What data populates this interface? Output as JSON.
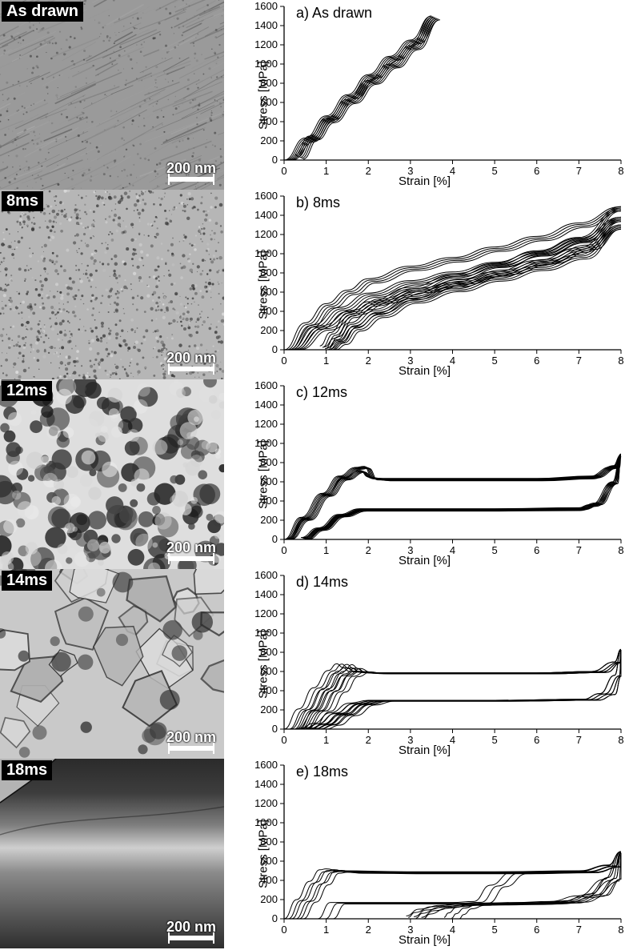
{
  "page_background": "#ffffff",
  "global": {
    "chart_ylabel": "Stress [MPa]",
    "chart_xlabel": "Strain [%]",
    "chart_ylabel_fontsize": 15,
    "chart_xlabel_fontsize": 15,
    "tick_font_size": 13,
    "subtitle_fontsize": 18,
    "xlim": [
      0,
      8
    ],
    "ylim": [
      0,
      1600
    ],
    "xtick_step": 1,
    "ytick_step": 200,
    "axis_color": "#000000",
    "curve_color": "#000000",
    "curve_stroke_width": 1.0,
    "background_color": "#ffffff"
  },
  "rows": [
    {
      "id": "as_drawn",
      "micrograph_label": "As drawn",
      "scalebar_text": "200 nm",
      "chart_subtitle": "a) As drawn",
      "curves": [
        {
          "load": [
            [
              0,
              0
            ],
            [
              0.5,
              230
            ],
            [
              1.0,
              460
            ],
            [
              1.5,
              680
            ],
            [
              2.0,
              890
            ],
            [
              2.5,
              1080
            ],
            [
              3.0,
              1250
            ],
            [
              3.5,
              1500
            ]
          ],
          "unload": [
            [
              3.5,
              1500
            ],
            [
              3.0,
              1190
            ],
            [
              2.5,
              1000
            ],
            [
              2.0,
              830
            ],
            [
              1.5,
              630
            ],
            [
              1.0,
              430
            ],
            [
              0.6,
              250
            ],
            [
              0.25,
              50
            ]
          ]
        }
      ],
      "curve_repeats": 6,
      "repeat_shift_strain": 0.04,
      "repeat_shift_stress": -8
    },
    {
      "id": "8ms",
      "micrograph_label": "8ms",
      "scalebar_text": "200 nm",
      "chart_subtitle": "b) 8ms",
      "curves": [
        {
          "load": [
            [
              0,
              0
            ],
            [
              0.5,
              280
            ],
            [
              1.0,
              480
            ],
            [
              1.5,
              620
            ],
            [
              2.0,
              740
            ],
            [
              3.0,
              870
            ],
            [
              4.0,
              960
            ],
            [
              5.0,
              1070
            ],
            [
              6.0,
              1180
            ],
            [
              7.0,
              1320
            ],
            [
              8.0,
              1490
            ]
          ],
          "unload": [
            [
              8.0,
              1490
            ],
            [
              7.0,
              1170
            ],
            [
              6.0,
              1030
            ],
            [
              5.0,
              900
            ],
            [
              4.0,
              780
            ],
            [
              3.0,
              650
            ],
            [
              2.0,
              500
            ],
            [
              1.5,
              380
            ],
            [
              1.1,
              180
            ],
            [
              0.85,
              40
            ]
          ]
        },
        {
          "load": [
            [
              0.1,
              0
            ],
            [
              0.7,
              260
            ],
            [
              1.3,
              440
            ],
            [
              2.0,
              590
            ],
            [
              3.0,
              720
            ],
            [
              4.0,
              810
            ],
            [
              5.0,
              910
            ],
            [
              6.0,
              1020
            ],
            [
              7.0,
              1160
            ],
            [
              8.0,
              1380
            ]
          ],
          "unload": [
            [
              8.0,
              1380
            ],
            [
              7.0,
              1060
            ],
            [
              6.0,
              930
            ],
            [
              5.0,
              810
            ],
            [
              4.0,
              700
            ],
            [
              3.0,
              570
            ],
            [
              2.1,
              420
            ],
            [
              1.55,
              280
            ],
            [
              1.2,
              120
            ],
            [
              0.95,
              30
            ]
          ]
        },
        {
          "load": [
            [
              0.2,
              0
            ],
            [
              0.9,
              250
            ],
            [
              1.6,
              410
            ],
            [
              2.3,
              530
            ],
            [
              3.2,
              640
            ],
            [
              4.2,
              730
            ],
            [
              5.2,
              830
            ],
            [
              6.2,
              940
            ],
            [
              7.2,
              1090
            ],
            [
              8.0,
              1300
            ]
          ],
          "unload": [
            [
              8.0,
              1300
            ],
            [
              7.0,
              990
            ],
            [
              6.0,
              870
            ],
            [
              5.0,
              760
            ],
            [
              4.0,
              650
            ],
            [
              3.0,
              530
            ],
            [
              2.2,
              380
            ],
            [
              1.65,
              240
            ],
            [
              1.3,
              100
            ],
            [
              1.05,
              25
            ]
          ]
        }
      ],
      "curve_repeats": 4,
      "repeat_shift_strain": 0.06,
      "repeat_shift_stress": -15
    },
    {
      "id": "12ms",
      "micrograph_label": "12ms",
      "scalebar_text": "200 nm",
      "chart_subtitle": "c) 12ms",
      "curves": [
        {
          "load": [
            [
              0,
              0
            ],
            [
              0.4,
              230
            ],
            [
              0.9,
              480
            ],
            [
              1.3,
              660
            ],
            [
              1.7,
              750
            ],
            [
              1.9,
              760
            ],
            [
              2.1,
              640
            ],
            [
              2.5,
              630
            ],
            [
              4.0,
              630
            ],
            [
              6.0,
              630
            ],
            [
              7.2,
              650
            ],
            [
              7.8,
              760
            ],
            [
              8.0,
              880
            ]
          ],
          "unload": [
            [
              8.0,
              880
            ],
            [
              7.8,
              600
            ],
            [
              7.4,
              380
            ],
            [
              7.0,
              330
            ],
            [
              5.0,
              320
            ],
            [
              3.0,
              320
            ],
            [
              1.8,
              320
            ],
            [
              1.3,
              260
            ],
            [
              0.8,
              120
            ],
            [
              0.4,
              20
            ]
          ]
        },
        {
          "load": [
            [
              0.05,
              0
            ],
            [
              0.5,
              220
            ],
            [
              1.0,
              470
            ],
            [
              1.4,
              640
            ],
            [
              1.8,
              720
            ],
            [
              2.0,
              650
            ],
            [
              2.3,
              635
            ],
            [
              4.0,
              635
            ],
            [
              6.0,
              635
            ],
            [
              7.3,
              660
            ],
            [
              7.85,
              770
            ],
            [
              8.0,
              890
            ]
          ],
          "unload": [
            [
              8.0,
              890
            ],
            [
              7.8,
              600
            ],
            [
              7.3,
              365
            ],
            [
              6.9,
              320
            ],
            [
              5.0,
              315
            ],
            [
              3.0,
              315
            ],
            [
              1.85,
              315
            ],
            [
              1.35,
              255
            ],
            [
              0.85,
              115
            ],
            [
              0.45,
              18
            ]
          ]
        }
      ],
      "curve_repeats": 5,
      "repeat_shift_strain": 0.03,
      "repeat_shift_stress": -5
    },
    {
      "id": "14ms",
      "micrograph_label": "14ms",
      "scalebar_text": "200 nm",
      "chart_subtitle": "d) 14ms",
      "curves": [
        {
          "load": [
            [
              0,
              0
            ],
            [
              0.35,
              210
            ],
            [
              0.7,
              430
            ],
            [
              1.05,
              610
            ],
            [
              1.25,
              680
            ],
            [
              1.4,
              640
            ],
            [
              1.55,
              600
            ],
            [
              2.0,
              585
            ],
            [
              4.0,
              585
            ],
            [
              6.0,
              585
            ],
            [
              7.3,
              600
            ],
            [
              7.85,
              700
            ],
            [
              8.0,
              830
            ]
          ],
          "unload": [
            [
              8.0,
              830
            ],
            [
              7.85,
              560
            ],
            [
              7.5,
              370
            ],
            [
              7.1,
              310
            ],
            [
              5.0,
              300
            ],
            [
              3.0,
              300
            ],
            [
              2.0,
              300
            ],
            [
              1.55,
              270
            ],
            [
              1.1,
              170
            ],
            [
              0.7,
              60
            ],
            [
              0.4,
              10
            ]
          ]
        },
        {
          "load": [
            [
              0.15,
              0
            ],
            [
              0.55,
              200
            ],
            [
              0.9,
              410
            ],
            [
              1.2,
              580
            ],
            [
              1.45,
              640
            ],
            [
              1.7,
              600
            ],
            [
              2.1,
              585
            ],
            [
              4.0,
              585
            ],
            [
              6.0,
              585
            ],
            [
              7.3,
              600
            ],
            [
              7.85,
              700
            ],
            [
              8.0,
              830
            ]
          ],
          "unload": [
            [
              8.0,
              830
            ],
            [
              7.85,
              560
            ],
            [
              7.5,
              370
            ],
            [
              7.1,
              310
            ],
            [
              5.0,
              300
            ],
            [
              3.0,
              300
            ],
            [
              2.1,
              300
            ],
            [
              1.65,
              265
            ],
            [
              1.2,
              160
            ],
            [
              0.8,
              55
            ],
            [
              0.5,
              10
            ]
          ]
        },
        {
          "load": [
            [
              0.3,
              0
            ],
            [
              0.75,
              195
            ],
            [
              1.1,
              395
            ],
            [
              1.4,
              555
            ],
            [
              1.7,
              605
            ],
            [
              1.95,
              590
            ],
            [
              2.3,
              585
            ],
            [
              4.0,
              585
            ],
            [
              6.0,
              585
            ],
            [
              7.3,
              600
            ],
            [
              7.85,
              700
            ],
            [
              8.0,
              830
            ]
          ],
          "unload": [
            [
              8.0,
              830
            ],
            [
              7.85,
              560
            ],
            [
              7.5,
              370
            ],
            [
              7.1,
              310
            ],
            [
              5.0,
              300
            ],
            [
              3.0,
              300
            ],
            [
              2.25,
              300
            ],
            [
              1.8,
              260
            ],
            [
              1.35,
              150
            ],
            [
              0.95,
              50
            ],
            [
              0.65,
              10
            ]
          ]
        }
      ],
      "curve_repeats": 4,
      "repeat_shift_strain": 0.12,
      "repeat_shift_stress": -3
    },
    {
      "id": "18ms",
      "micrograph_label": "18ms",
      "scalebar_text": "200 nm",
      "chart_subtitle": "e) 18ms",
      "curves": [
        {
          "load": [
            [
              0,
              0
            ],
            [
              0.3,
              200
            ],
            [
              0.6,
              390
            ],
            [
              0.85,
              510
            ],
            [
              1.0,
              520
            ],
            [
              1.3,
              500
            ],
            [
              3.0,
              490
            ],
            [
              5.0,
              490
            ],
            [
              7.0,
              500
            ],
            [
              7.7,
              560
            ],
            [
              8.0,
              700
            ]
          ],
          "unload": [
            [
              8.0,
              700
            ],
            [
              7.7,
              430
            ],
            [
              7.3,
              260
            ],
            [
              6.8,
              190
            ],
            [
              6.2,
              170
            ],
            [
              5.3,
              165
            ],
            [
              4.4,
              160
            ],
            [
              3.7,
              140
            ],
            [
              3.2,
              100
            ],
            [
              2.9,
              30
            ]
          ]
        },
        {
          "load": [
            [
              0.1,
              0
            ],
            [
              0.4,
              190
            ],
            [
              0.7,
              370
            ],
            [
              0.95,
              490
            ],
            [
              1.15,
              500
            ],
            [
              1.5,
              490
            ],
            [
              3.0,
              485
            ],
            [
              5.0,
              485
            ],
            [
              7.0,
              495
            ],
            [
              7.7,
              555
            ],
            [
              8.0,
              700
            ]
          ],
          "unload": [
            [
              8.0,
              700
            ],
            [
              7.7,
              430
            ],
            [
              7.2,
              250
            ],
            [
              6.6,
              180
            ],
            [
              5.8,
              165
            ],
            [
              4.9,
              160
            ],
            [
              4.1,
              155
            ],
            [
              3.5,
              125
            ],
            [
              3.1,
              65
            ],
            [
              2.95,
              15
            ]
          ]
        },
        {
          "load": [
            [
              0.8,
              0
            ],
            [
              1.1,
              170
            ],
            [
              1.9,
              170
            ],
            [
              3.0,
              170
            ],
            [
              4.0,
              170
            ],
            [
              4.5,
              180
            ],
            [
              4.9,
              350
            ],
            [
              5.4,
              485
            ],
            [
              7.0,
              495
            ],
            [
              7.7,
              555
            ],
            [
              8.0,
              700
            ]
          ],
          "unload": [
            [
              8.0,
              700
            ],
            [
              7.6,
              410
            ],
            [
              7.0,
              240
            ],
            [
              6.3,
              180
            ],
            [
              5.5,
              170
            ],
            [
              4.9,
              165
            ],
            [
              4.4,
              155
            ],
            [
              4.1,
              120
            ],
            [
              3.9,
              60
            ],
            [
              3.8,
              15
            ]
          ]
        }
      ],
      "curve_repeats": 3,
      "repeat_shift_strain": 0.18,
      "repeat_shift_stress": -8
    }
  ],
  "micrograph_seeds": {
    "as_drawn": 11,
    "8ms": 22,
    "12ms": 33,
    "14ms": 44,
    "18ms": 55
  }
}
